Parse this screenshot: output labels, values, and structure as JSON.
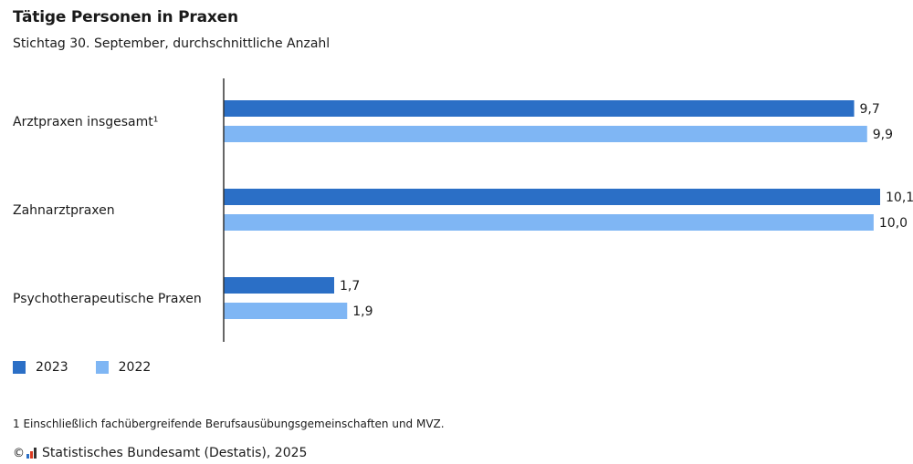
{
  "header": {
    "title": "Tätige Personen in Praxen",
    "subtitle": "Stichtag 30. September, durchschnittliche Anzahl"
  },
  "colors": {
    "series_2023": "#2b6fc6",
    "series_2022": "#7fb6f4",
    "axis": "#333333"
  },
  "chart_data": {
    "type": "bar",
    "orientation": "horizontal",
    "categories": [
      "Arztpraxen insgesamt¹",
      "Zahnarztpraxen",
      "Psychotherapeutische Praxen"
    ],
    "series": [
      {
        "name": "2023",
        "values": [
          9.7,
          10.1,
          1.7
        ],
        "labels": [
          "9,7",
          "10,1",
          "1,7"
        ]
      },
      {
        "name": "2022",
        "values": [
          9.9,
          10.0,
          1.9
        ],
        "labels": [
          "9,9",
          "10,0",
          "1,9"
        ]
      }
    ],
    "xlim": [
      0,
      10.1
    ],
    "grid": false,
    "legend": "bottom-left"
  },
  "footnote": "1 Einschließlich fachübergreifende Berufsausübungsgemeinschaften und MVZ.",
  "copyright": {
    "symbol": "©",
    "text": "Statistisches Bundesamt (Destatis), 2025",
    "logo_icon": "destatis-logo-icon"
  }
}
